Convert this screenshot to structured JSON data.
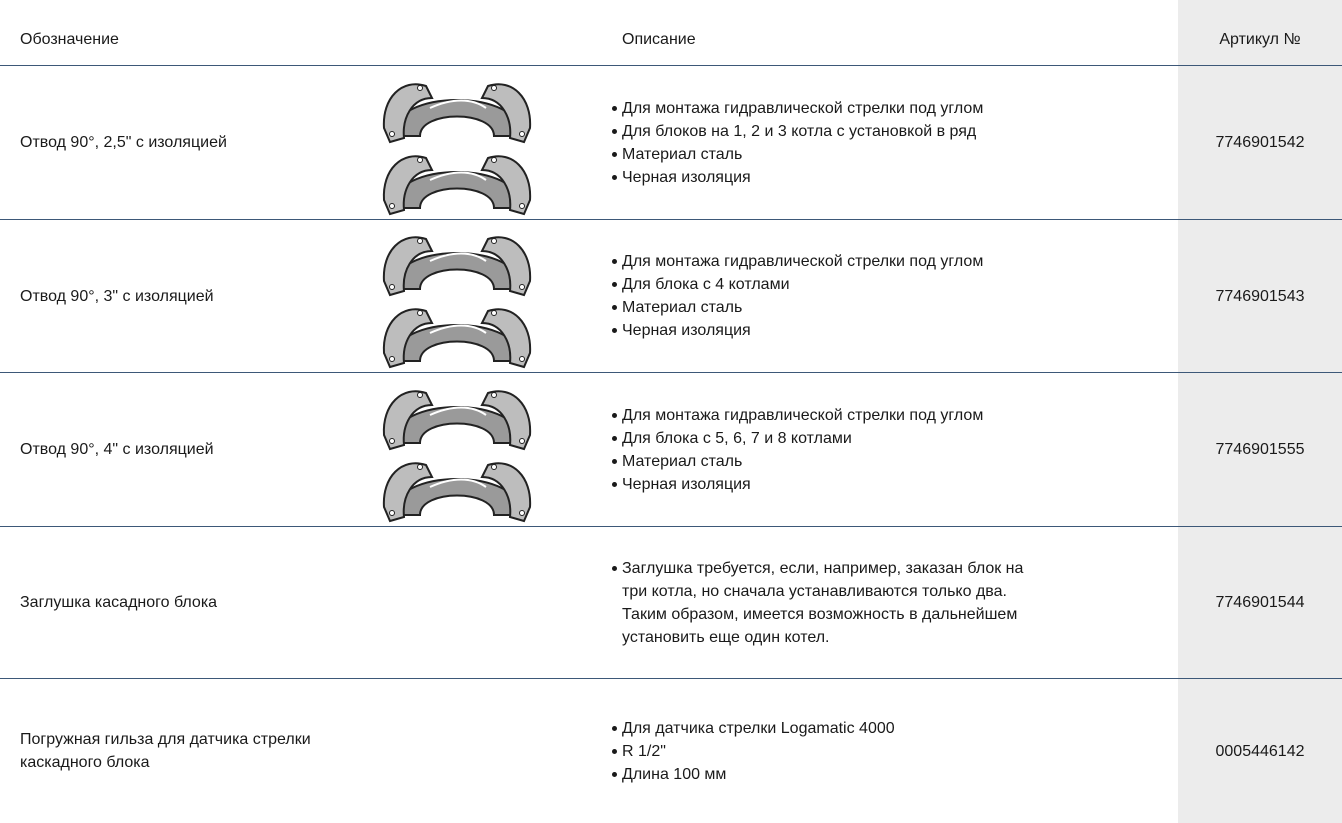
{
  "header": {
    "name": "Обозначение",
    "description": "Описание",
    "article": "Артикул №"
  },
  "rows": [
    {
      "name": "Отвод 90°, 2,5\" с изоляцией",
      "description": [
        "Для монтажа гидравлической стрелки под углом",
        "Для блоков на 1, 2 и 3 котла с установкой в ряд",
        "Материал сталь",
        "Черная изоляция"
      ],
      "article": "7746901542"
    },
    {
      "name": "Отвод 90°, 3\" с изоляцией",
      "description": [
        "Для монтажа гидравлической стрелки под углом",
        "Для блока с 4 котлами",
        "Материал сталь",
        "Черная изоляция"
      ],
      "article": "7746901543"
    },
    {
      "name": "Отвод 90°, 4\" с изоляцией",
      "description": [
        "Для монтажа гидравлической стрелки под углом",
        "Для блока с 5, 6, 7 и 8 котлами",
        "Материал сталь",
        "Черная изоляция"
      ],
      "article": "7746901555"
    },
    {
      "name": "Заглушка касадного блока",
      "description": [
        "Заглушка требуется, если, например, заказан блок на три котла, но сначала устанавливаются только два. Таким образом, имеется возможность в дальнейшем установить еще один котел."
      ],
      "article": "7746901544"
    },
    {
      "name": "Погружная гильза для датчика стрелки каскадного блока",
      "description": [
        "Для датчика стрелки Logamatic 4000",
        "R 1/2\"",
        "Длина 100 мм"
      ],
      "article": "0005446142"
    }
  ]
}
